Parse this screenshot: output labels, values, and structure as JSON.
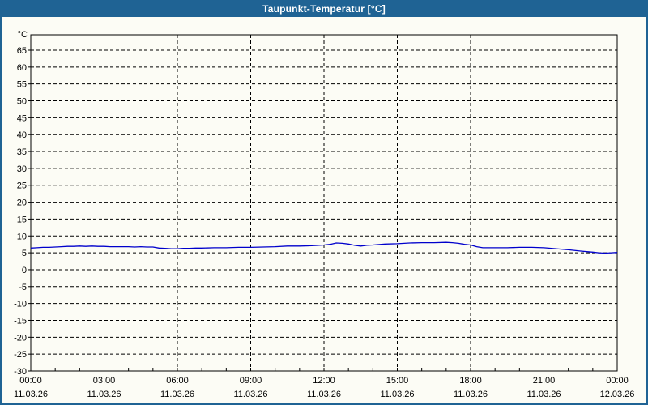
{
  "window": {
    "title": "Taupunkt-Temperatur [°C]",
    "titlebar_color": "#1f6394",
    "frame_color": "#1f6394",
    "background_color": "#fcfcf5"
  },
  "chart_data": {
    "type": "line",
    "title": "Taupunkt-Temperatur [°C]",
    "y_unit_label": "°C",
    "ylim": [
      -30,
      69.5
    ],
    "yticks": [
      65,
      60,
      55,
      50,
      45,
      40,
      35,
      30,
      25,
      20,
      15,
      10,
      5,
      0,
      -5,
      -10,
      -15,
      -20,
      -25,
      -30
    ],
    "grid": "dashed",
    "grid_color": "#000000",
    "line_color": "#0000cc",
    "x_axis": {
      "total_hours": 24,
      "minor_tick_every_hours": 1,
      "major_every_hours": 3,
      "major_labels": [
        {
          "time": "00:00",
          "date": "11.03.26"
        },
        {
          "time": "03:00",
          "date": "11.03.26"
        },
        {
          "time": "06:00",
          "date": "11.03.26"
        },
        {
          "time": "09:00",
          "date": "11.03.26"
        },
        {
          "time": "12:00",
          "date": "11.03.26"
        },
        {
          "time": "15:00",
          "date": "11.03.26"
        },
        {
          "time": "18:00",
          "date": "11.03.26"
        },
        {
          "time": "21:00",
          "date": "11.03.26"
        },
        {
          "time": "00:00",
          "date": "12.03.26"
        }
      ]
    },
    "series": [
      {
        "name": "Taupunkt-Temperatur",
        "color": "#0000cc",
        "points": [
          [
            0,
            6.4
          ],
          [
            0.25,
            6.5
          ],
          [
            0.5,
            6.6
          ],
          [
            0.75,
            6.6
          ],
          [
            1,
            6.7
          ],
          [
            1.25,
            6.8
          ],
          [
            1.5,
            6.9
          ],
          [
            1.75,
            6.9
          ],
          [
            2,
            7.0
          ],
          [
            2.25,
            6.9
          ],
          [
            2.5,
            7.0
          ],
          [
            2.75,
            6.9
          ],
          [
            3,
            6.9
          ],
          [
            3.25,
            6.8
          ],
          [
            3.5,
            6.8
          ],
          [
            3.75,
            6.8
          ],
          [
            4,
            6.8
          ],
          [
            4.25,
            6.7
          ],
          [
            4.5,
            6.8
          ],
          [
            4.75,
            6.7
          ],
          [
            5,
            6.7
          ],
          [
            5.25,
            6.4
          ],
          [
            5.5,
            6.3
          ],
          [
            5.75,
            6.2
          ],
          [
            6,
            6.2
          ],
          [
            6.25,
            6.3
          ],
          [
            6.5,
            6.3
          ],
          [
            6.75,
            6.4
          ],
          [
            7,
            6.4
          ],
          [
            7.5,
            6.5
          ],
          [
            8,
            6.5
          ],
          [
            8.5,
            6.6
          ],
          [
            9,
            6.6
          ],
          [
            9.5,
            6.7
          ],
          [
            10,
            6.8
          ],
          [
            10.5,
            7.0
          ],
          [
            11,
            7.0
          ],
          [
            11.5,
            7.1
          ],
          [
            12,
            7.3
          ],
          [
            12.25,
            7.5
          ],
          [
            12.5,
            7.9
          ],
          [
            12.75,
            7.8
          ],
          [
            13,
            7.6
          ],
          [
            13.25,
            7.2
          ],
          [
            13.5,
            7.0
          ],
          [
            13.75,
            7.2
          ],
          [
            14,
            7.3
          ],
          [
            14.5,
            7.6
          ],
          [
            15,
            7.7
          ],
          [
            15.5,
            7.9
          ],
          [
            16,
            8.0
          ],
          [
            16.5,
            8.0
          ],
          [
            17,
            8.1
          ],
          [
            17.25,
            8.0
          ],
          [
            17.5,
            7.8
          ],
          [
            17.75,
            7.5
          ],
          [
            18,
            7.3
          ],
          [
            18.25,
            6.8
          ],
          [
            18.5,
            6.5
          ],
          [
            19,
            6.5
          ],
          [
            19.5,
            6.5
          ],
          [
            20,
            6.6
          ],
          [
            20.5,
            6.6
          ],
          [
            21,
            6.5
          ],
          [
            21.5,
            6.2
          ],
          [
            22,
            5.9
          ],
          [
            22.5,
            5.5
          ],
          [
            23,
            5.2
          ],
          [
            23.25,
            5.0
          ],
          [
            23.5,
            4.9
          ],
          [
            23.75,
            5.0
          ],
          [
            24,
            5.1
          ]
        ]
      }
    ]
  }
}
